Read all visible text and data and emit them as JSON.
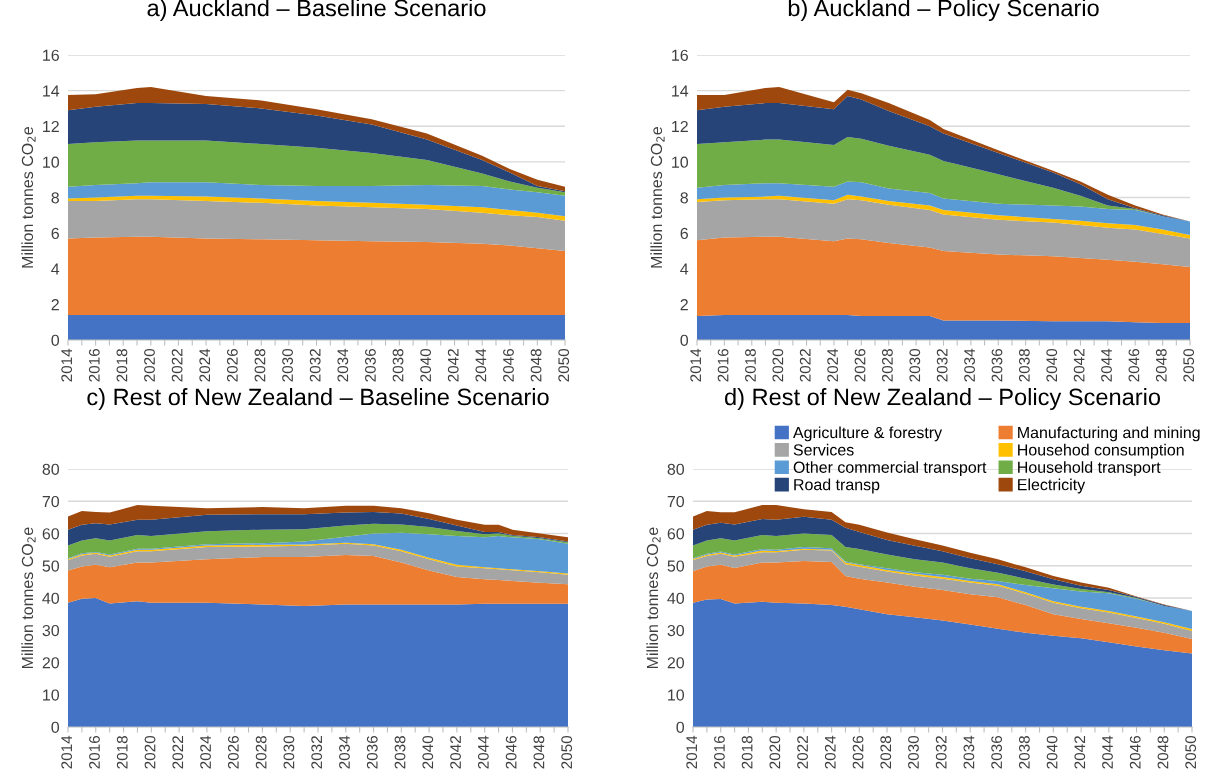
{
  "chart_data": [
    {
      "type": "area",
      "stacked": true,
      "title": "a) Auckland – Baseline Scenario",
      "ylabel": "Million tonnes CO$_{2}$e",
      "grid": "y",
      "legend": false,
      "x": [
        2014,
        2016,
        2019,
        2020,
        2024,
        2028,
        2032,
        2036,
        2040,
        2044,
        2046,
        2048,
        2050
      ],
      "xlim": [
        2014,
        2050
      ],
      "xticks": [
        2014,
        {
          "value": 2015,
          "label": null
        },
        2016,
        {
          "value": 2017,
          "label": null
        },
        2018,
        {
          "value": 2019,
          "label": null
        },
        2020,
        {
          "value": 2021,
          "label": null
        },
        2022,
        {
          "value": 2023,
          "label": null
        },
        2024,
        {
          "value": 2025,
          "label": null
        },
        2026,
        {
          "value": 2027,
          "label": null
        },
        2028,
        {
          "value": 2029,
          "label": null
        },
        2030,
        {
          "value": 2031,
          "label": null
        },
        2032,
        {
          "value": 2033,
          "label": null
        },
        2034,
        {
          "value": 2035,
          "label": null
        },
        2036,
        {
          "value": 2037,
          "label": null
        },
        2038,
        {
          "value": 2039,
          "label": null
        },
        2040,
        {
          "value": 2041,
          "label": null
        },
        2042,
        {
          "value": 2043,
          "label": null
        },
        2044,
        {
          "value": 2045,
          "label": null
        },
        2046,
        {
          "value": 2047,
          "label": null
        },
        2048,
        {
          "value": 2049,
          "label": null
        },
        2050
      ],
      "ylim": [
        0,
        16
      ],
      "yticks": [
        0,
        2,
        4,
        6,
        8,
        10,
        12,
        14,
        16
      ],
      "series": [
        {
          "color": "#4472c4",
          "values": [
            1.4,
            1.4,
            1.4,
            1.4,
            1.4,
            1.4,
            1.4,
            1.4,
            1.4,
            1.4,
            1.4,
            1.4,
            1.4
          ]
        },
        {
          "color": "#ed7d31",
          "values": [
            4.3,
            4.35,
            4.4,
            4.4,
            4.3,
            4.25,
            4.2,
            4.15,
            4.1,
            4.0,
            3.9,
            3.75,
            3.6
          ]
        },
        {
          "color": "#a5a5a5",
          "values": [
            2.1,
            2.05,
            2.1,
            2.1,
            2.1,
            2.05,
            1.95,
            1.9,
            1.85,
            1.75,
            1.7,
            1.75,
            1.7
          ]
        },
        {
          "color": "#ffc000",
          "values": [
            0.15,
            0.2,
            0.2,
            0.2,
            0.25,
            0.25,
            0.25,
            0.25,
            0.25,
            0.3,
            0.3,
            0.25,
            0.25
          ]
        },
        {
          "color": "#5b9bd5",
          "values": [
            0.65,
            0.7,
            0.7,
            0.75,
            0.8,
            0.75,
            0.85,
            0.95,
            1.1,
            1.2,
            1.15,
            1.15,
            1.15
          ]
        },
        {
          "color": "#70ad47",
          "values": [
            2.4,
            2.4,
            2.4,
            2.35,
            2.35,
            2.3,
            2.15,
            1.85,
            1.4,
            0.7,
            0.45,
            0.25,
            0.2
          ]
        },
        {
          "color": "#264478",
          "values": [
            1.9,
            2.0,
            2.1,
            2.1,
            2.05,
            2.0,
            1.8,
            1.6,
            1.15,
            0.75,
            0.5,
            0.1,
            0.05
          ]
        },
        {
          "color": "#9e480e",
          "values": [
            0.85,
            0.7,
            0.85,
            0.9,
            0.45,
            0.45,
            0.35,
            0.3,
            0.35,
            0.25,
            0.2,
            0.35,
            0.25
          ]
        }
      ]
    },
    {
      "type": "area",
      "stacked": true,
      "title": "b) Auckland – Policy Scenario",
      "ylabel": "Million tonnes CO$_{2}$e",
      "grid": "y",
      "legend": false,
      "x": [
        2014,
        2016,
        2019,
        2020,
        2024,
        2025,
        2026,
        2028,
        2031,
        2032,
        2036,
        2040,
        2042,
        2044,
        2046,
        2048,
        2050
      ],
      "xlim": [
        2014,
        2050
      ],
      "xticks": [
        2014,
        {
          "value": 2015,
          "label": null
        },
        2016,
        {
          "value": 2017,
          "label": null
        },
        2018,
        {
          "value": 2019,
          "label": null
        },
        2020,
        {
          "value": 2021,
          "label": null
        },
        2022,
        {
          "value": 2023,
          "label": null
        },
        2024,
        {
          "value": 2025,
          "label": null
        },
        2026,
        {
          "value": 2027,
          "label": null
        },
        2028,
        {
          "value": 2029,
          "label": null
        },
        2030,
        {
          "value": 2031,
          "label": null
        },
        2032,
        {
          "value": 2033,
          "label": null
        },
        2034,
        {
          "value": 2035,
          "label": null
        },
        2036,
        {
          "value": 2037,
          "label": null
        },
        2038,
        {
          "value": 2039,
          "label": null
        },
        2040,
        {
          "value": 2041,
          "label": null
        },
        2042,
        {
          "value": 2043,
          "label": null
        },
        2044,
        {
          "value": 2045,
          "label": null
        },
        2046,
        {
          "value": 2047,
          "label": null
        },
        2048,
        {
          "value": 2049,
          "label": null
        },
        2050
      ],
      "ylim": [
        0,
        16
      ],
      "yticks": [
        0,
        2,
        4,
        6,
        8,
        10,
        12,
        14,
        16
      ],
      "series": [
        {
          "color": "#4472c4",
          "values": [
            1.35,
            1.4,
            1.4,
            1.4,
            1.4,
            1.4,
            1.35,
            1.35,
            1.35,
            1.1,
            1.1,
            1.05,
            1.05,
            1.05,
            1.0,
            0.95,
            0.95
          ]
        },
        {
          "color": "#ed7d31",
          "values": [
            4.25,
            4.35,
            4.4,
            4.4,
            4.15,
            4.3,
            4.3,
            4.1,
            3.85,
            3.9,
            3.7,
            3.65,
            3.55,
            3.45,
            3.4,
            3.3,
            3.15
          ]
        },
        {
          "color": "#a5a5a5",
          "values": [
            2.15,
            2.1,
            2.1,
            2.1,
            2.1,
            2.2,
            2.2,
            2.15,
            2.1,
            2.05,
            1.95,
            1.9,
            1.85,
            1.8,
            1.8,
            1.7,
            1.6
          ]
        },
        {
          "color": "#ffc000",
          "values": [
            0.15,
            0.15,
            0.15,
            0.2,
            0.2,
            0.25,
            0.2,
            0.2,
            0.25,
            0.25,
            0.25,
            0.2,
            0.25,
            0.25,
            0.25,
            0.25,
            0.2
          ]
        },
        {
          "color": "#5b9bd5",
          "values": [
            0.65,
            0.7,
            0.75,
            0.7,
            0.75,
            0.75,
            0.8,
            0.7,
            0.7,
            0.65,
            0.65,
            0.75,
            0.8,
            0.8,
            0.85,
            0.75,
            0.75
          ]
        },
        {
          "color": "#70ad47",
          "values": [
            2.45,
            2.4,
            2.45,
            2.45,
            2.35,
            2.5,
            2.45,
            2.4,
            2.15,
            2.1,
            1.65,
            1.0,
            0.6,
            0.2,
            0.05,
            0,
            0
          ]
        },
        {
          "color": "#264478",
          "values": [
            1.9,
            2.0,
            2.05,
            2.05,
            2.0,
            2.3,
            2.2,
            1.95,
            1.6,
            1.55,
            1.2,
            0.85,
            0.65,
            0.35,
            0.05,
            0.05,
            0
          ]
        },
        {
          "color": "#9e480e",
          "values": [
            0.85,
            0.65,
            0.85,
            0.9,
            0.4,
            0.35,
            0.35,
            0.45,
            0.35,
            0.25,
            0.15,
            0.1,
            0.15,
            0.25,
            0.15,
            0.05,
            0
          ]
        }
      ]
    },
    {
      "type": "area",
      "stacked": true,
      "title": "c) Rest of New Zealand – Baseline Scenario",
      "ylabel": "Million tonnes CO$_{2}$e",
      "grid": "y",
      "legend": false,
      "x": [
        2014,
        2015,
        2016,
        2017,
        2019,
        2020,
        2024,
        2028,
        2031,
        2034,
        2036,
        2038,
        2040,
        2042,
        2044,
        2045,
        2046,
        2048,
        2050
      ],
      "xlim": [
        2014,
        2050
      ],
      "xticks": [
        2014,
        {
          "value": 2015,
          "label": null
        },
        2016,
        {
          "value": 2017,
          "label": null
        },
        2018,
        {
          "value": 2019,
          "label": null
        },
        2020,
        {
          "value": 2021,
          "label": null
        },
        2022,
        {
          "value": 2023,
          "label": null
        },
        2024,
        {
          "value": 2025,
          "label": null
        },
        2026,
        {
          "value": 2027,
          "label": null
        },
        2028,
        {
          "value": 2029,
          "label": null
        },
        2030,
        {
          "value": 2031,
          "label": null
        },
        2032,
        {
          "value": 2033,
          "label": null
        },
        2034,
        {
          "value": 2035,
          "label": null
        },
        2036,
        {
          "value": 2037,
          "label": null
        },
        2038,
        {
          "value": 2039,
          "label": null
        },
        2040,
        {
          "value": 2041,
          "label": null
        },
        2042,
        {
          "value": 2043,
          "label": null
        },
        2044,
        {
          "value": 2045,
          "label": null
        },
        2046,
        {
          "value": 2047,
          "label": null
        },
        2048,
        {
          "value": 2049,
          "label": null
        },
        2050
      ],
      "ylim": [
        0,
        80
      ],
      "yticks": [
        0,
        10,
        20,
        30,
        40,
        50,
        60,
        70,
        80
      ],
      "series": [
        {
          "color": "#4472c4",
          "values": [
            38.5,
            39.8,
            40,
            38.3,
            39,
            38.5,
            38.5,
            38,
            37.5,
            38,
            38,
            38,
            38,
            38,
            38.2,
            38.2,
            38.2,
            38.2,
            38.2
          ]
        },
        {
          "color": "#ed7d31",
          "values": [
            10,
            10,
            10.3,
            11.2,
            12,
            12.5,
            13.5,
            14.7,
            15.2,
            15.3,
            15,
            13,
            10.5,
            8.5,
            7.6,
            7.4,
            7.1,
            6.5,
            6.1
          ]
        },
        {
          "color": "#a5a5a5",
          "values": [
            3.3,
            3.4,
            3.4,
            3.3,
            3.5,
            3.5,
            3.8,
            3.3,
            3.5,
            3.5,
            3.3,
            3.5,
            3.5,
            3.3,
            3.4,
            3.3,
            3.3,
            3.3,
            2.9
          ]
        },
        {
          "color": "#ffc000",
          "values": [
            0.3,
            0.4,
            0.3,
            0.4,
            0.5,
            0.5,
            0.5,
            0.5,
            0.4,
            0.3,
            0.4,
            0.5,
            0.5,
            0.5,
            0.3,
            0.3,
            0.3,
            0.3,
            0.4
          ]
        },
        {
          "color": "#5b9bd5",
          "values": [
            0.2,
            0.3,
            0.3,
            0.3,
            0.3,
            0.3,
            0.4,
            0.5,
            0.9,
            1.9,
            3.3,
            5.2,
            7.3,
            8.9,
            9.3,
            10,
            9.9,
            9.9,
            9.2
          ]
        },
        {
          "color": "#70ad47",
          "values": [
            4.0,
            3.9,
            4.2,
            4.3,
            4.2,
            3.9,
            4.0,
            4.2,
            3.8,
            3.5,
            3.0,
            2.6,
            2.2,
            1.6,
            1.0,
            0.8,
            0.5,
            0.3,
            0.5
          ]
        },
        {
          "color": "#264478",
          "values": [
            4.9,
            4.9,
            4.7,
            5.0,
            4.8,
            5.1,
            5.1,
            4.8,
            4.7,
            4.0,
            3.7,
            3.4,
            2.5,
            1.7,
            0.7,
            0.5,
            0.2,
            0.3,
            0.2
          ]
        },
        {
          "color": "#9e480e",
          "values": [
            4.1,
            4.3,
            3.5,
            3.7,
            4.5,
            4.3,
            2.0,
            2.2,
            1.8,
            2.1,
            1.9,
            1.6,
            1.8,
            1.8,
            2.2,
            2.2,
            1.7,
            1.2,
            1.3
          ]
        }
      ]
    },
    {
      "type": "area",
      "stacked": true,
      "title": "d) Rest of New Zealand – Policy Scenario",
      "ylabel": "Million tonnes CO$_{2}$e",
      "grid": "y",
      "legend": "top right",
      "x": [
        2014,
        2015,
        2016,
        2017,
        2019,
        2020,
        2022,
        2024,
        2025,
        2026,
        2028,
        2030,
        2032,
        2034,
        2036,
        2038,
        2040,
        2042,
        2044,
        2046,
        2048,
        2050
      ],
      "xlim": [
        2014,
        2050
      ],
      "xticks": [
        2014,
        {
          "value": 2015,
          "label": null
        },
        2016,
        {
          "value": 2017,
          "label": null
        },
        2018,
        {
          "value": 2019,
          "label": null
        },
        2020,
        {
          "value": 2021,
          "label": null
        },
        2022,
        {
          "value": 2023,
          "label": null
        },
        2024,
        {
          "value": 2025,
          "label": null
        },
        2026,
        {
          "value": 2027,
          "label": null
        },
        2028,
        {
          "value": 2029,
          "label": null
        },
        2030,
        {
          "value": 2031,
          "label": null
        },
        2032,
        {
          "value": 2033,
          "label": null
        },
        2034,
        {
          "value": 2035,
          "label": null
        },
        2036,
        {
          "value": 2037,
          "label": null
        },
        2038,
        {
          "value": 2039,
          "label": null
        },
        2040,
        {
          "value": 2041,
          "label": null
        },
        2042,
        {
          "value": 2043,
          "label": null
        },
        2044,
        {
          "value": 2045,
          "label": null
        },
        2046,
        {
          "value": 2047,
          "label": null
        },
        2048,
        {
          "value": 2049,
          "label": null
        },
        2050
      ],
      "ylim": [
        0,
        80
      ],
      "yticks": [
        0,
        10,
        20,
        30,
        40,
        50,
        60,
        70,
        80
      ],
      "series": [
        {
          "name": "Agriculture & forestry",
          "color": "#4472c4",
          "values": [
            38.5,
            39.5,
            39.7,
            38.3,
            38.8,
            38.5,
            38.3,
            37.8,
            37.3,
            36.5,
            35,
            34,
            33,
            31.8,
            30.5,
            29.2,
            28.3,
            27.5,
            26.3,
            25,
            23.8,
            22.8
          ]
        },
        {
          "name": "Manufacturing and mining",
          "color": "#ed7d31",
          "values": [
            9.8,
            10.3,
            10.6,
            11,
            12.2,
            12.5,
            13.2,
            13.4,
            9.5,
            9.5,
            9.8,
            9.5,
            9.5,
            9.4,
            9.7,
            8.6,
            6.7,
            6.0,
            5.9,
            5.8,
            5.4,
            4.5
          ]
        },
        {
          "name": "Services",
          "color": "#a5a5a5",
          "values": [
            3.5,
            3.2,
            3.4,
            3.5,
            3.2,
            3.2,
            3.5,
            3.5,
            3.7,
            3.7,
            3.4,
            3.5,
            3.5,
            3.6,
            3.6,
            3.5,
            3.5,
            3.3,
            3.3,
            3.0,
            2.8,
            2.5
          ]
        },
        {
          "name": "Househod consumption",
          "color": "#ffc000",
          "values": [
            0.3,
            0.4,
            0.4,
            0.4,
            0.5,
            0.4,
            0.3,
            0.3,
            0.5,
            0.5,
            0.5,
            0.5,
            0.5,
            0.5,
            0.5,
            0.5,
            0.5,
            0.5,
            0.5,
            0.5,
            0.5,
            0.6
          ]
        },
        {
          "name": "Other commercial transport",
          "color": "#5b9bd5",
          "values": [
            0.2,
            0.3,
            0.3,
            0.3,
            0.5,
            0.4,
            0.5,
            0.4,
            0.3,
            0.3,
            0.5,
            0.5,
            0.7,
            0.7,
            1.0,
            2.2,
            4.0,
            4.7,
            5.5,
            5.5,
            5.0,
            5.6
          ]
        },
        {
          "name": "Household transport",
          "color": "#70ad47",
          "values": [
            4.0,
            4.1,
            4.1,
            4.3,
            4.3,
            4.2,
            4.2,
            4.1,
            4.5,
            4.7,
            4.3,
            4.0,
            3.8,
            3.2,
            2.5,
            2.0,
            1.2,
            0.8,
            0.3,
            0.2,
            0,
            0
          ]
        },
        {
          "name": "Road transp",
          "color": "#264478",
          "values": [
            4.9,
            4.9,
            4.8,
            5.0,
            5.0,
            5.1,
            5.2,
            4.8,
            6.0,
            5.3,
            4.5,
            4.2,
            3.5,
            3.1,
            2.7,
            2.3,
            1.6,
            1.0,
            0.7,
            0.3,
            0.3,
            0
          ]
        },
        {
          "name": "Electricity",
          "color": "#9e480e",
          "values": [
            4.1,
            4.3,
            3.3,
            3.8,
            4.3,
            4.5,
            2.3,
            2.4,
            1.7,
            2.2,
            2.3,
            2.0,
            1.8,
            1.7,
            1.5,
            1.2,
            1.0,
            1.0,
            0.7,
            0.2,
            0.2,
            0
          ]
        }
      ]
    }
  ]
}
